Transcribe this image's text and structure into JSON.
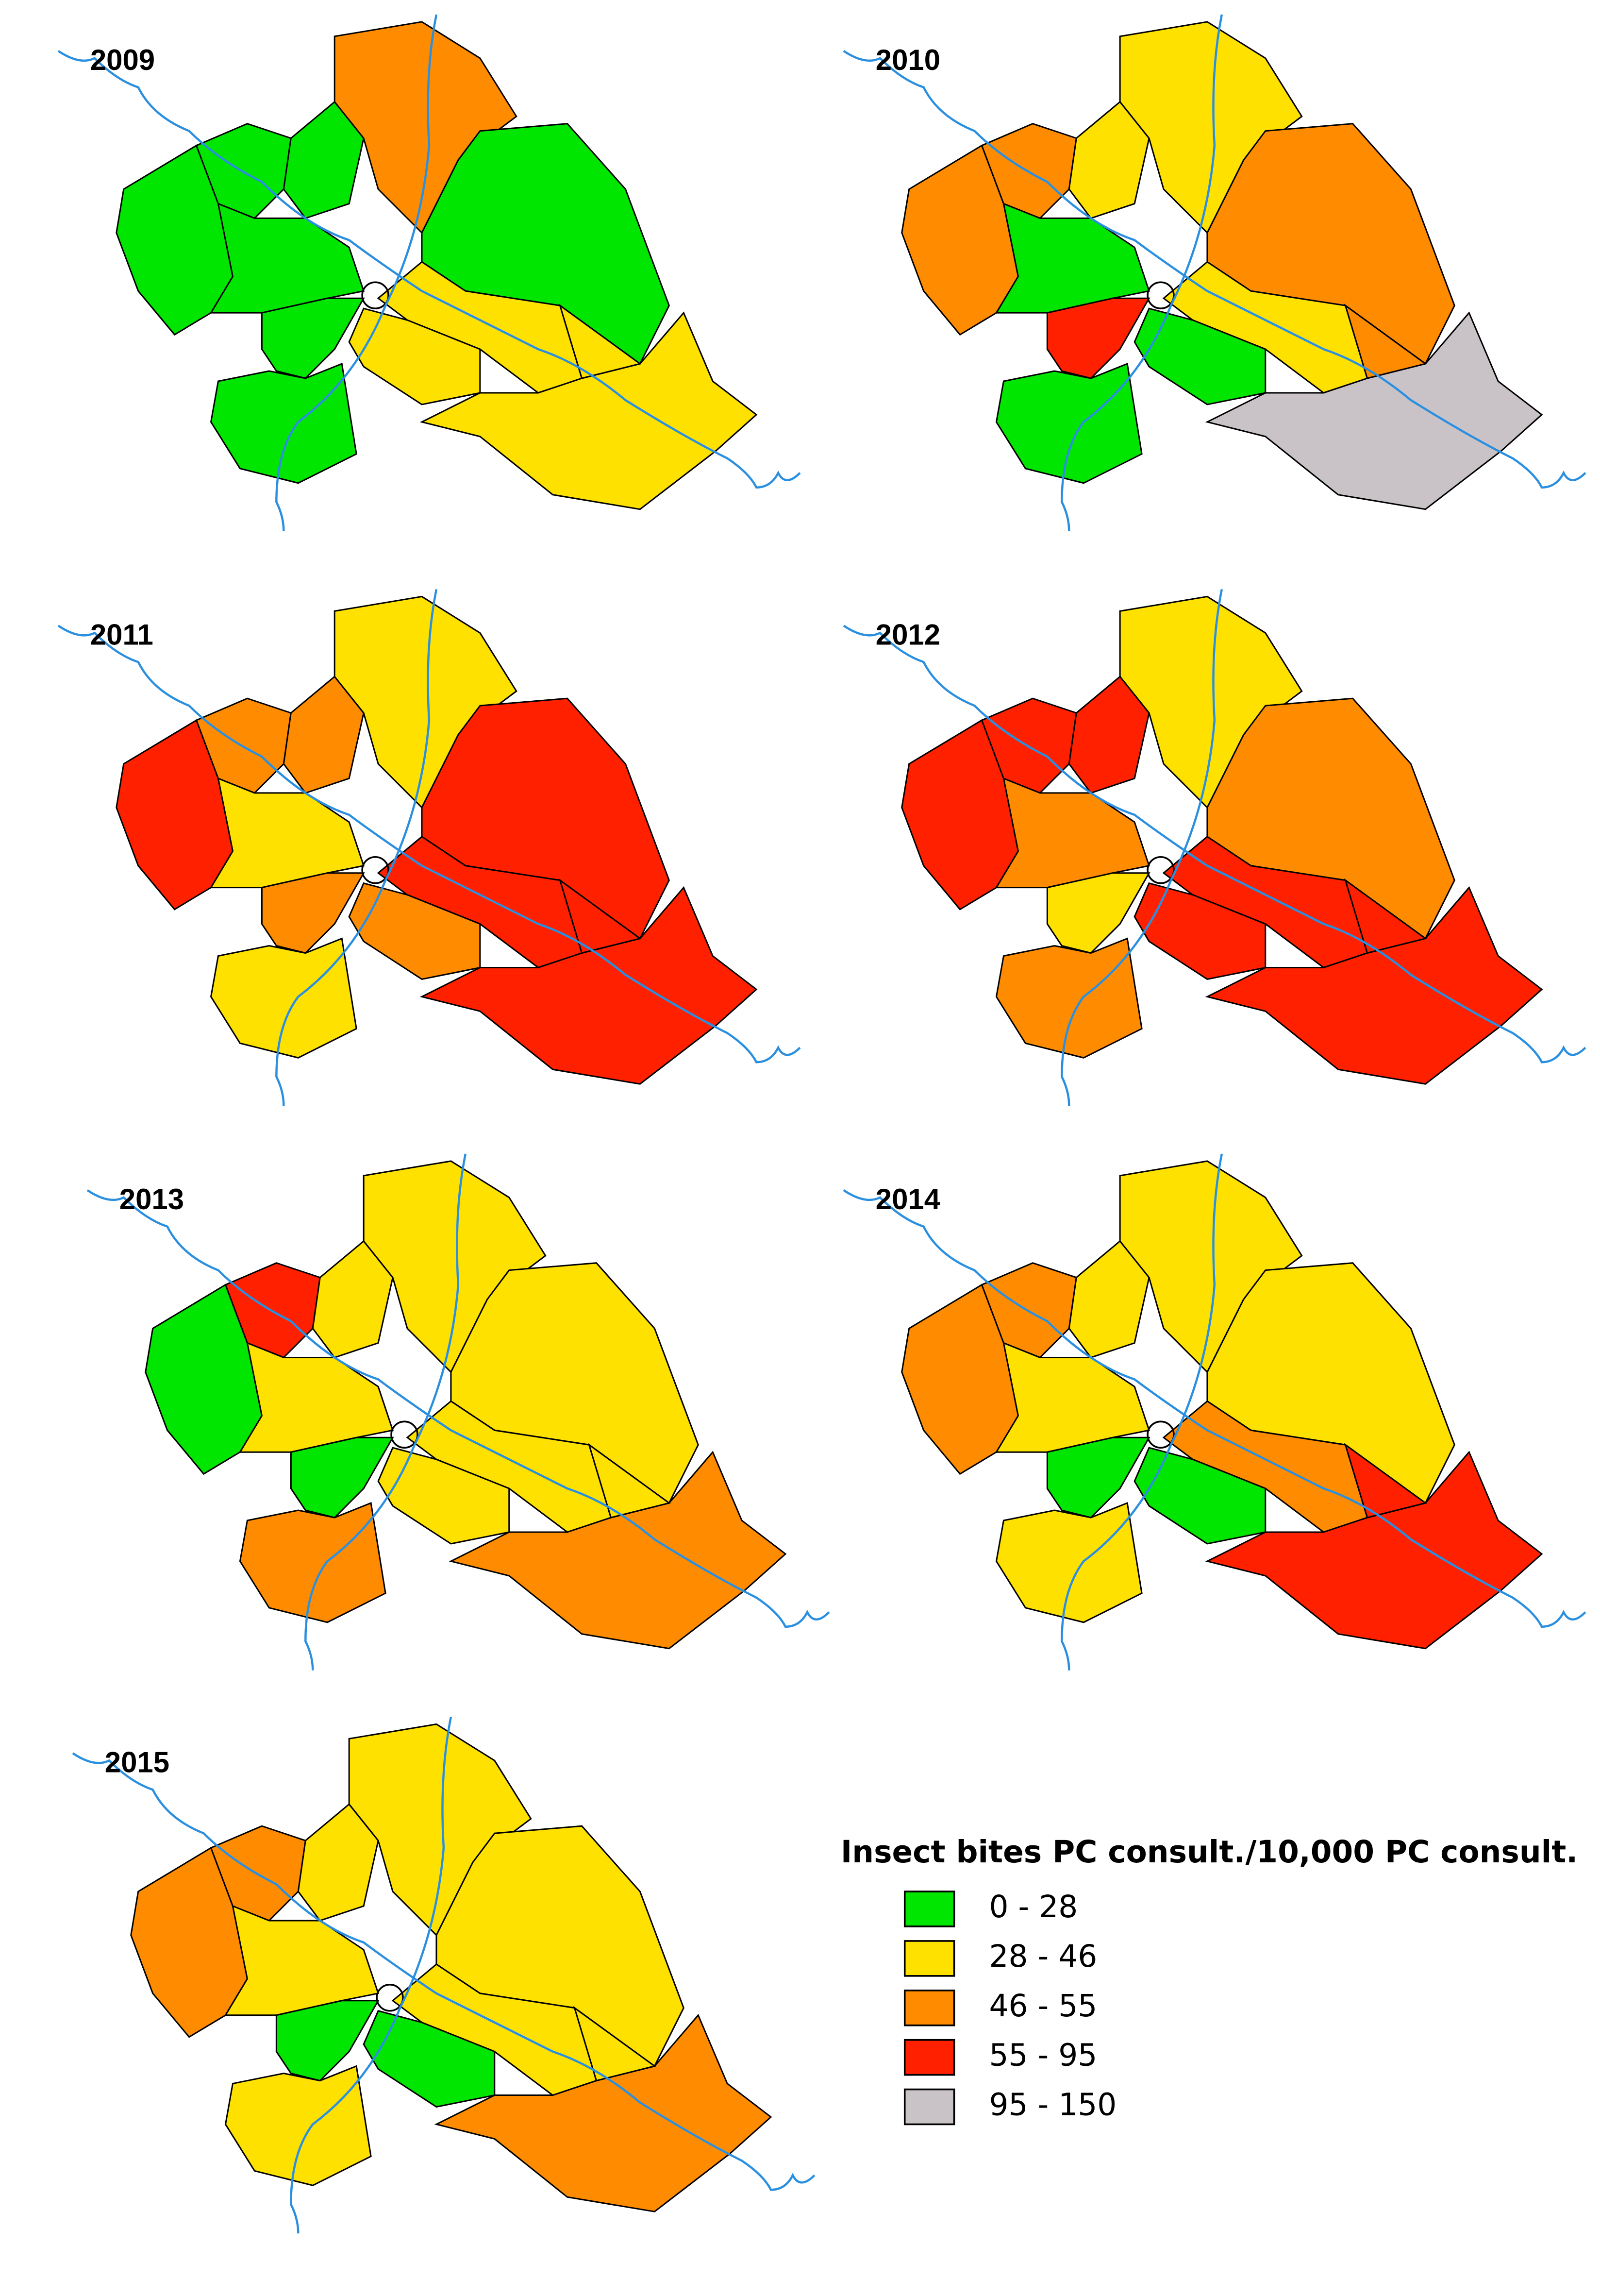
{
  "maps": [
    {
      "year": "2009",
      "region_colors": [
        "#00e600",
        "#00e600",
        "#00e600",
        "#ff8c00",
        "#00e600",
        "#00e600",
        "#00e600",
        "#00e600",
        "#ffe100",
        "#ffe100",
        "#ffe100",
        "#ffe100"
      ]
    },
    {
      "year": "2010",
      "region_colors": [
        "#ff8c00",
        "#ff8c00",
        "#ffe100",
        "#ffe100",
        "#ff8c00",
        "#00e600",
        "#ff2000",
        "#00e600",
        "#ffe100",
        "#00e600",
        "#c9c3c8",
        "#ff8c00"
      ]
    },
    {
      "year": "2011",
      "region_colors": [
        "#ff2000",
        "#ff8c00",
        "#ff8c00",
        "#ffe100",
        "#ff2000",
        "#ffe100",
        "#ff8c00",
        "#ffe100",
        "#ff2000",
        "#ff8c00",
        "#ff2000",
        "#ff2000"
      ]
    },
    {
      "year": "2012",
      "region_colors": [
        "#ff2000",
        "#ff2000",
        "#ff2000",
        "#ffe100",
        "#ff8c00",
        "#ff8c00",
        "#ffe100",
        "#ff8c00",
        "#ff2000",
        "#ff2000",
        "#ff2000",
        "#ff2000"
      ]
    },
    {
      "year": "2013",
      "region_colors": [
        "#00e600",
        "#ff2000",
        "#ffe100",
        "#ffe100",
        "#ffe100",
        "#ffe100",
        "#00e600",
        "#ff8c00",
        "#ffe100",
        "#ffe100",
        "#ff8c00",
        "#ffe100"
      ]
    },
    {
      "year": "2014",
      "region_colors": [
        "#ff8c00",
        "#ff8c00",
        "#ffe100",
        "#ffe100",
        "#ffe100",
        "#ffe100",
        "#00e600",
        "#ffe100",
        "#ff8c00",
        "#00e600",
        "#ff2000",
        "#ff2000"
      ]
    },
    {
      "year": "2015",
      "region_colors": [
        "#ff8c00",
        "#ff8c00",
        "#ffe100",
        "#ffe100",
        "#ffe100",
        "#ffe100",
        "#00e600",
        "#ffe100",
        "#ffe100",
        "#00e600",
        "#ff8c00",
        "#ffe100"
      ]
    }
  ],
  "legend": {
    "title": "Insect bites PC consult./10,000 PC consult.",
    "items": [
      {
        "label": "0 - 28",
        "color": "#00e600"
      },
      {
        "label": "28 - 46",
        "color": "#ffe100"
      },
      {
        "label": "46 - 55",
        "color": "#ff8c00"
      },
      {
        "label": "55 - 95",
        "color": "#ff2000"
      },
      {
        "label": "95 - 150",
        "color": "#c9c3c8"
      }
    ]
  }
}
